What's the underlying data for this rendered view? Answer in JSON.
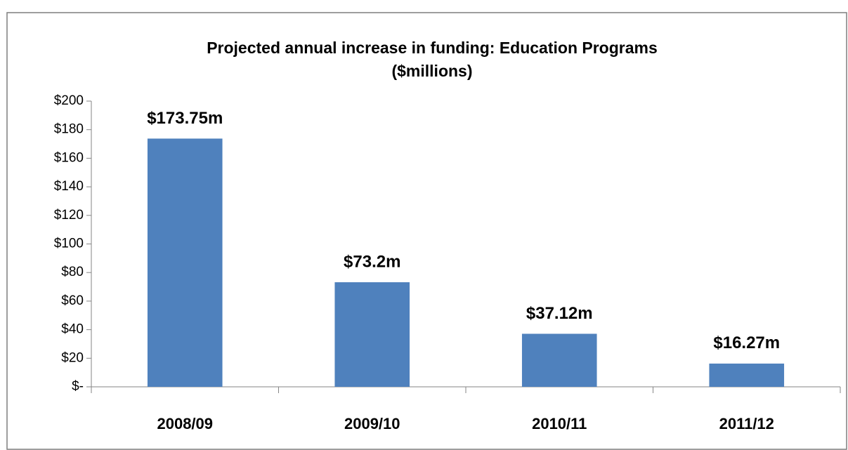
{
  "chart_data": {
    "type": "bar",
    "title": "Projected annual increase in funding: Education Programs",
    "subtitle": "($millions)",
    "categories": [
      "2008/09",
      "2009/10",
      "2010/11",
      "2011/12"
    ],
    "values": [
      173.75,
      73.2,
      37.12,
      16.27
    ],
    "value_labels": [
      "$173.75m",
      "$73.2m",
      "$37.12m",
      "$16.27m"
    ],
    "color": "#4f81bd",
    "ylim": [
      0,
      200
    ],
    "yticks": [
      {
        "value": 0,
        "label": "$-"
      },
      {
        "value": 20,
        "label": "$20"
      },
      {
        "value": 40,
        "label": "$40"
      },
      {
        "value": 60,
        "label": "$60"
      },
      {
        "value": 80,
        "label": "$80"
      },
      {
        "value": 100,
        "label": "$100"
      },
      {
        "value": 120,
        "label": "$120"
      },
      {
        "value": 140,
        "label": "$140"
      },
      {
        "value": 160,
        "label": "$160"
      },
      {
        "value": 180,
        "label": "$180"
      },
      {
        "value": 200,
        "label": "$200"
      }
    ],
    "grid": false
  }
}
